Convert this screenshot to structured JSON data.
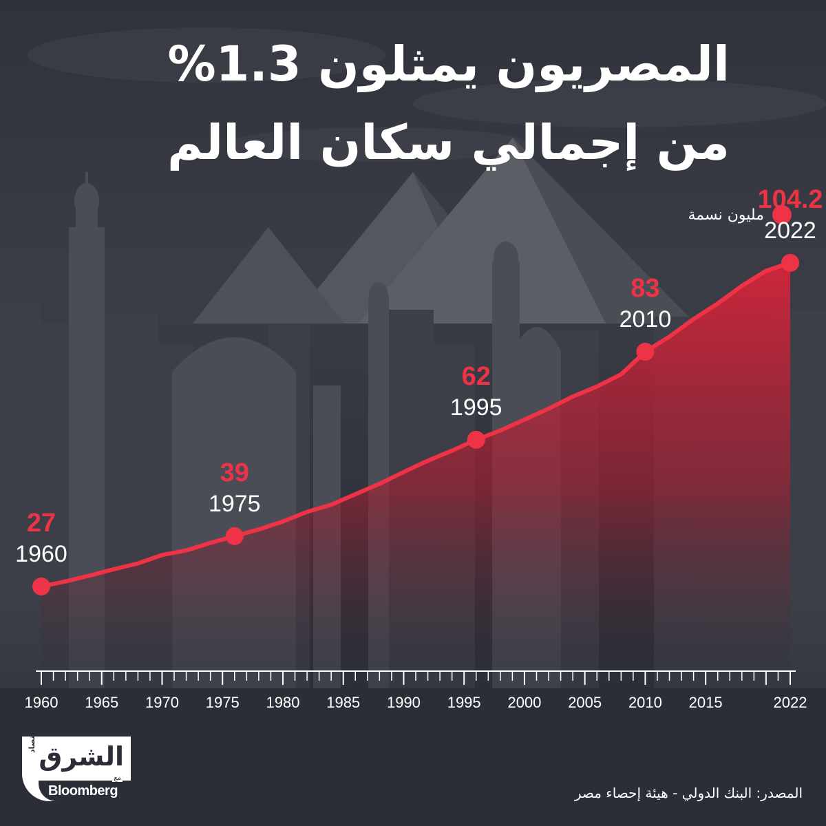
{
  "title": {
    "line1": "المصريون يمثلون 1.3%",
    "line2": "من إجمالي سكان العالم"
  },
  "legend": {
    "label": "مليون نسمة",
    "color": "#ef3347"
  },
  "chart_data": {
    "type": "area",
    "title": "المصريون يمثلون 1.3% من إجمالي سكان العالم",
    "xlabel": "",
    "ylabel": "",
    "unit": "مليون نسمة",
    "x_ticks": [
      "1960",
      "1965",
      "1970",
      "1975",
      "1980",
      "1985",
      "1990",
      "1995",
      "2000",
      "2005",
      "2010",
      "2015",
      "2022"
    ],
    "series": [
      {
        "name": "مليون نسمة",
        "color": "#ef3347",
        "x": [
          1960,
          1962,
          1964,
          1966,
          1968,
          1970,
          1972,
          1974,
          1976,
          1978,
          1980,
          1982,
          1984,
          1986,
          1988,
          1990,
          1992,
          1994,
          1996,
          1998,
          2000,
          2002,
          2004,
          2006,
          2008,
          2010,
          2012,
          2014,
          2016,
          2018,
          2020,
          2022
        ],
        "y": [
          27,
          28.2,
          29.6,
          31.1,
          32.5,
          34.5,
          35.6,
          37.4,
          39,
          40.6,
          42.5,
          44.8,
          46.5,
          49,
          51.5,
          54.3,
          57,
          59.4,
          62,
          64.2,
          66.8,
          69.4,
          72.3,
          74.7,
          77.6,
          83,
          86.6,
          90.8,
          94.5,
          98.7,
          102.3,
          104.2
        ]
      }
    ],
    "highlighted_points": [
      {
        "year": "1960",
        "value": "27",
        "x": 1960,
        "y": 27
      },
      {
        "year": "1975",
        "value": "39",
        "x": 1976,
        "y": 39
      },
      {
        "year": "1995",
        "value": "62",
        "x": 1996,
        "y": 62
      },
      {
        "year": "2010",
        "value": "83",
        "x": 2010,
        "y": 83
      },
      {
        "year": "2022",
        "value": "104.2",
        "x": 2022,
        "y": 104.2
      }
    ],
    "grid": false,
    "legend_position": "top-right"
  },
  "logo": {
    "main": "الشرق",
    "sub": "اقتصاد",
    "with": "مع",
    "partner": "Bloomberg"
  },
  "source": "المصدر: البنك الدولي - هيئة إحصاء مصر"
}
